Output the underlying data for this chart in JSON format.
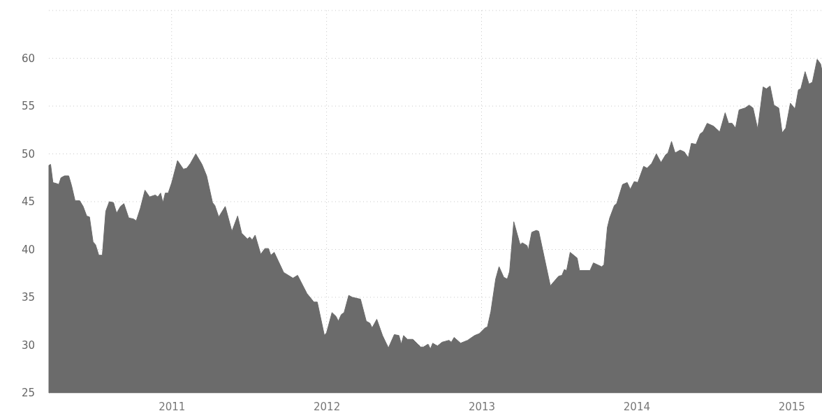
{
  "chart_data": {
    "type": "area",
    "color": "#6b6b6b",
    "x": [
      2010.208,
      2010.219,
      2010.234,
      2010.257,
      2010.272,
      2010.286,
      2010.309,
      2010.336,
      2010.354,
      2010.377,
      2010.407,
      2010.429,
      2010.452,
      2010.47,
      2010.493,
      2010.509,
      2010.53,
      2010.553,
      2010.575,
      2010.598,
      2010.625,
      2010.645,
      2010.67,
      2010.692,
      2010.723,
      2010.753,
      2010.772,
      2010.798,
      2010.828,
      2010.858,
      2010.895,
      2010.911,
      2010.929,
      2010.944,
      2010.959,
      2010.978,
      2011.001,
      2011.038,
      2011.076,
      2011.098,
      2011.121,
      2011.156,
      2011.196,
      2011.226,
      2011.264,
      2011.279,
      2011.304,
      2011.346,
      2011.389,
      2011.426,
      2011.452,
      2011.489,
      2011.504,
      2011.52,
      2011.539,
      2011.575,
      2011.602,
      2011.625,
      2011.64,
      2011.662,
      2011.723,
      2011.783,
      2011.813,
      2011.873,
      2011.918,
      2011.94,
      2011.986,
      2012.0,
      2012.035,
      2012.061,
      2012.076,
      2012.095,
      2012.113,
      2012.143,
      2012.166,
      2012.219,
      2012.256,
      2012.279,
      2012.294,
      2012.324,
      2012.361,
      2012.399,
      2012.437,
      2012.467,
      2012.482,
      2012.497,
      2012.522,
      2012.557,
      2012.607,
      2012.625,
      2012.655,
      2012.67,
      2012.685,
      2012.715,
      2012.745,
      2012.79,
      2012.805,
      2012.823,
      2012.865,
      2012.91,
      2012.955,
      2012.986,
      2013.023,
      2013.038,
      2013.06,
      2013.091,
      2013.113,
      2013.143,
      2013.166,
      2013.181,
      2013.208,
      2013.249,
      2013.263,
      2013.294,
      2013.301,
      2013.324,
      2013.354,
      2013.369,
      2013.444,
      2013.497,
      2013.519,
      2013.534,
      2013.549,
      2013.572,
      2013.617,
      2013.632,
      2013.7,
      2013.722,
      2013.775,
      2013.79,
      2013.812,
      2013.827,
      2013.857,
      2013.872,
      2013.91,
      2013.94,
      2013.96,
      2013.985,
      2014.008,
      2014.046,
      2014.068,
      2014.098,
      2014.128,
      2014.158,
      2014.188,
      2014.203,
      2014.226,
      2014.249,
      2014.282,
      2014.309,
      2014.334,
      2014.354,
      2014.384,
      2014.411,
      2014.429,
      2014.456,
      2014.497,
      2014.537,
      2014.572,
      2014.594,
      2014.617,
      2014.639,
      2014.662,
      2014.7,
      2014.727,
      2014.752,
      2014.782,
      2014.817,
      2014.838,
      2014.862,
      2014.887,
      2014.918,
      2014.94,
      2014.963,
      2014.993,
      2015.023,
      2015.045,
      2015.06,
      2015.088,
      2015.113,
      2015.135,
      2015.166,
      2015.188,
      2015.197
    ],
    "values": [
      48.8,
      48.9,
      47.0,
      46.9,
      46.8,
      47.5,
      47.7,
      47.7,
      46.7,
      45.1,
      45.1,
      44.5,
      43.5,
      43.4,
      40.8,
      40.5,
      39.4,
      39.4,
      44.0,
      45.0,
      44.9,
      43.8,
      44.5,
      44.8,
      43.3,
      43.2,
      43.0,
      44.3,
      46.2,
      45.5,
      45.7,
      45.5,
      45.9,
      44.9,
      45.9,
      45.9,
      47.0,
      49.3,
      48.4,
      48.5,
      49.0,
      50.0,
      48.9,
      47.7,
      44.9,
      44.6,
      43.4,
      44.5,
      41.9,
      43.5,
      41.7,
      41.1,
      41.3,
      41.0,
      41.5,
      39.5,
      40.1,
      40.1,
      39.4,
      39.7,
      37.6,
      37.0,
      37.3,
      35.4,
      34.5,
      34.5,
      31.0,
      31.3,
      33.4,
      33.0,
      32.5,
      33.2,
      33.4,
      35.2,
      35.0,
      34.8,
      32.5,
      32.3,
      31.8,
      32.7,
      31.0,
      29.7,
      31.1,
      31.0,
      30.1,
      31.0,
      30.6,
      30.6,
      29.8,
      29.8,
      30.1,
      29.6,
      30.2,
      29.9,
      30.3,
      30.5,
      30.3,
      30.8,
      30.2,
      30.5,
      31.0,
      31.2,
      31.8,
      31.9,
      33.5,
      36.9,
      38.2,
      37.1,
      36.9,
      37.7,
      42.9,
      40.5,
      40.7,
      40.4,
      39.9,
      41.8,
      42.0,
      41.9,
      36.2,
      37.2,
      37.3,
      37.9,
      37.8,
      39.7,
      39.1,
      37.8,
      37.8,
      38.6,
      38.2,
      38.4,
      42.3,
      43.3,
      44.6,
      44.8,
      46.8,
      47.0,
      46.3,
      47.1,
      47.0,
      48.7,
      48.5,
      49.0,
      50.0,
      49.1,
      49.9,
      50.1,
      51.3,
      50.1,
      50.4,
      50.2,
      49.6,
      51.1,
      51.0,
      52.1,
      52.3,
      53.2,
      52.9,
      52.3,
      54.3,
      53.2,
      53.2,
      52.7,
      54.6,
      54.8,
      55.1,
      54.8,
      52.6,
      57.0,
      56.8,
      57.1,
      55.1,
      54.8,
      52.2,
      52.7,
      55.3,
      54.7,
      56.7,
      56.8,
      58.6,
      57.3,
      57.5,
      59.9,
      59.4,
      58.7
    ],
    "xlim": [
      2010.208,
      2015.197
    ],
    "xticks": [
      2011,
      2012,
      2013,
      2014,
      2015
    ],
    "ylim": [
      25,
      65
    ],
    "yticks": [
      25,
      30,
      35,
      40,
      45,
      50,
      55,
      60,
      {
        "value": 65,
        "label": null
      }
    ],
    "grid": true
  }
}
